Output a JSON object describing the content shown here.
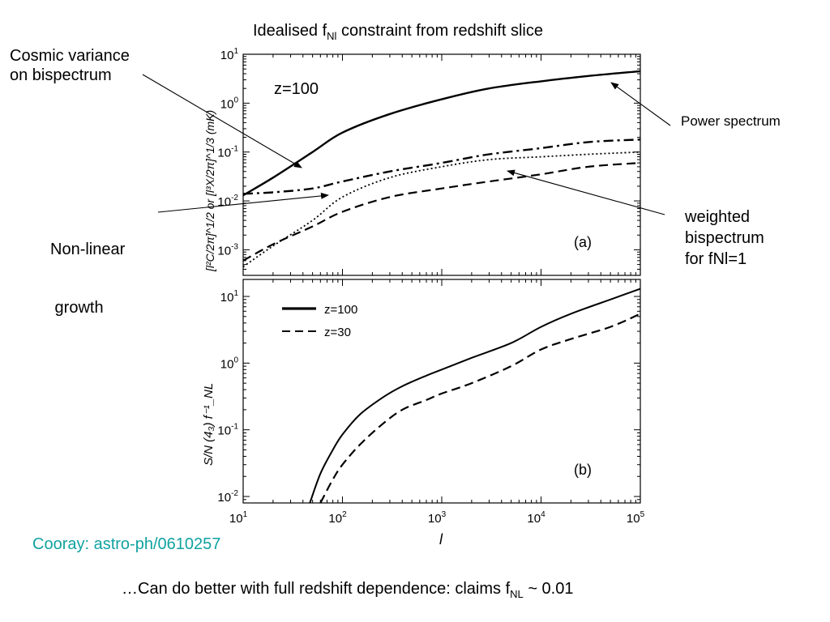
{
  "title": {
    "prefix": "Idealised f",
    "sub": "Nl",
    "suffix": " constraint from redshift slice"
  },
  "annotations": {
    "cosmic_variance": [
      "Cosmic variance",
      "on bispectrum"
    ],
    "nonlinear_growth": [
      "Non-linear",
      " growth"
    ],
    "power_spectrum": "Power spectrum",
    "weighted_bispectrum": [
      "weighted",
      "bispectrum",
      "for fNl=1"
    ]
  },
  "citation": "Cooray: astro-ph/0610257",
  "footer": {
    "prefix": "…Can do better with full redshift dependence: claims f",
    "sub": "NL",
    "suffix": " ~ 0.01"
  },
  "chart_data": [
    {
      "type": "line",
      "panel_label": "(a)",
      "inset_text": "z=100",
      "ylabel": "[l²C/2π]^1/2 or [l³X/2π]^1/3 (mK)",
      "xscale": "log",
      "yscale": "log",
      "xlim": [
        10,
        100000
      ],
      "ylim": [
        0.0003,
        10
      ],
      "x_ticks": [
        10,
        100,
        1000,
        10000,
        100000
      ],
      "y_ticks": [
        {
          "value": 0.001,
          "base": "10",
          "exp": "-3"
        },
        {
          "value": 0.01,
          "base": "10",
          "exp": "-2"
        },
        {
          "value": 0.1,
          "base": "10",
          "exp": "-1"
        },
        {
          "value": 1,
          "base": "10",
          "exp": "0"
        },
        {
          "value": 10,
          "base": "10",
          "exp": "1"
        }
      ],
      "series": [
        {
          "style": "solid",
          "x": [
            10,
            20,
            50,
            100,
            300,
            1000,
            3000,
            10000,
            30000,
            100000
          ],
          "y": [
            0.013,
            0.03,
            0.1,
            0.25,
            0.6,
            1.2,
            2.0,
            2.8,
            3.6,
            4.5
          ]
        },
        {
          "style": "dashdot",
          "x": [
            10,
            20,
            50,
            100,
            300,
            1000,
            3000,
            10000,
            30000,
            100000
          ],
          "y": [
            0.014,
            0.015,
            0.018,
            0.025,
            0.04,
            0.06,
            0.09,
            0.12,
            0.16,
            0.18
          ]
        },
        {
          "style": "dotted",
          "x": [
            10,
            20,
            50,
            100,
            300,
            1000,
            3000,
            10000,
            30000,
            100000
          ],
          "y": [
            0.00045,
            0.0012,
            0.004,
            0.012,
            0.03,
            0.05,
            0.07,
            0.08,
            0.09,
            0.1
          ]
        },
        {
          "style": "dashed",
          "x": [
            10,
            20,
            50,
            100,
            300,
            1000,
            3000,
            10000,
            30000,
            100000
          ],
          "y": [
            0.0006,
            0.0013,
            0.003,
            0.006,
            0.012,
            0.018,
            0.025,
            0.035,
            0.05,
            0.06
          ]
        }
      ]
    },
    {
      "type": "line",
      "panel_label": "(b)",
      "xlabel": "l",
      "ylabel": "S/N (4₃) f⁻¹_NL",
      "xscale": "log",
      "yscale": "log",
      "xlim": [
        10,
        100000
      ],
      "ylim": [
        0.008,
        18
      ],
      "x_ticks": [
        {
          "value": 10,
          "base": "10",
          "exp": "1"
        },
        {
          "value": 100,
          "base": "10",
          "exp": "2"
        },
        {
          "value": 1000,
          "base": "10",
          "exp": "3"
        },
        {
          "value": 10000,
          "base": "10",
          "exp": "4"
        },
        {
          "value": 100000,
          "base": "10",
          "exp": "5"
        }
      ],
      "y_ticks": [
        {
          "value": 0.01,
          "base": "10",
          "exp": "-2"
        },
        {
          "value": 0.1,
          "base": "10",
          "exp": "-1"
        },
        {
          "value": 1,
          "base": "10",
          "exp": "0"
        },
        {
          "value": 10,
          "base": "10",
          "exp": "1"
        }
      ],
      "legend": "top-left",
      "series": [
        {
          "name": "z=100",
          "style": "solid",
          "x": [
            47,
            60,
            80,
            100,
            150,
            250,
            400,
            700,
            1000,
            2000,
            5000,
            10000,
            20000,
            50000,
            100000
          ],
          "y": [
            0.008,
            0.022,
            0.05,
            0.085,
            0.17,
            0.3,
            0.45,
            0.65,
            0.8,
            1.2,
            2.0,
            3.5,
            5.5,
            9.0,
            13.0
          ]
        },
        {
          "name": "z=30",
          "style": "dashed",
          "x": [
            60,
            80,
            100,
            150,
            250,
            400,
            700,
            1000,
            2000,
            5000,
            10000,
            20000,
            50000,
            100000
          ],
          "y": [
            0.008,
            0.018,
            0.03,
            0.06,
            0.12,
            0.2,
            0.28,
            0.35,
            0.5,
            0.9,
            1.6,
            2.3,
            3.5,
            5.5
          ]
        }
      ]
    }
  ]
}
